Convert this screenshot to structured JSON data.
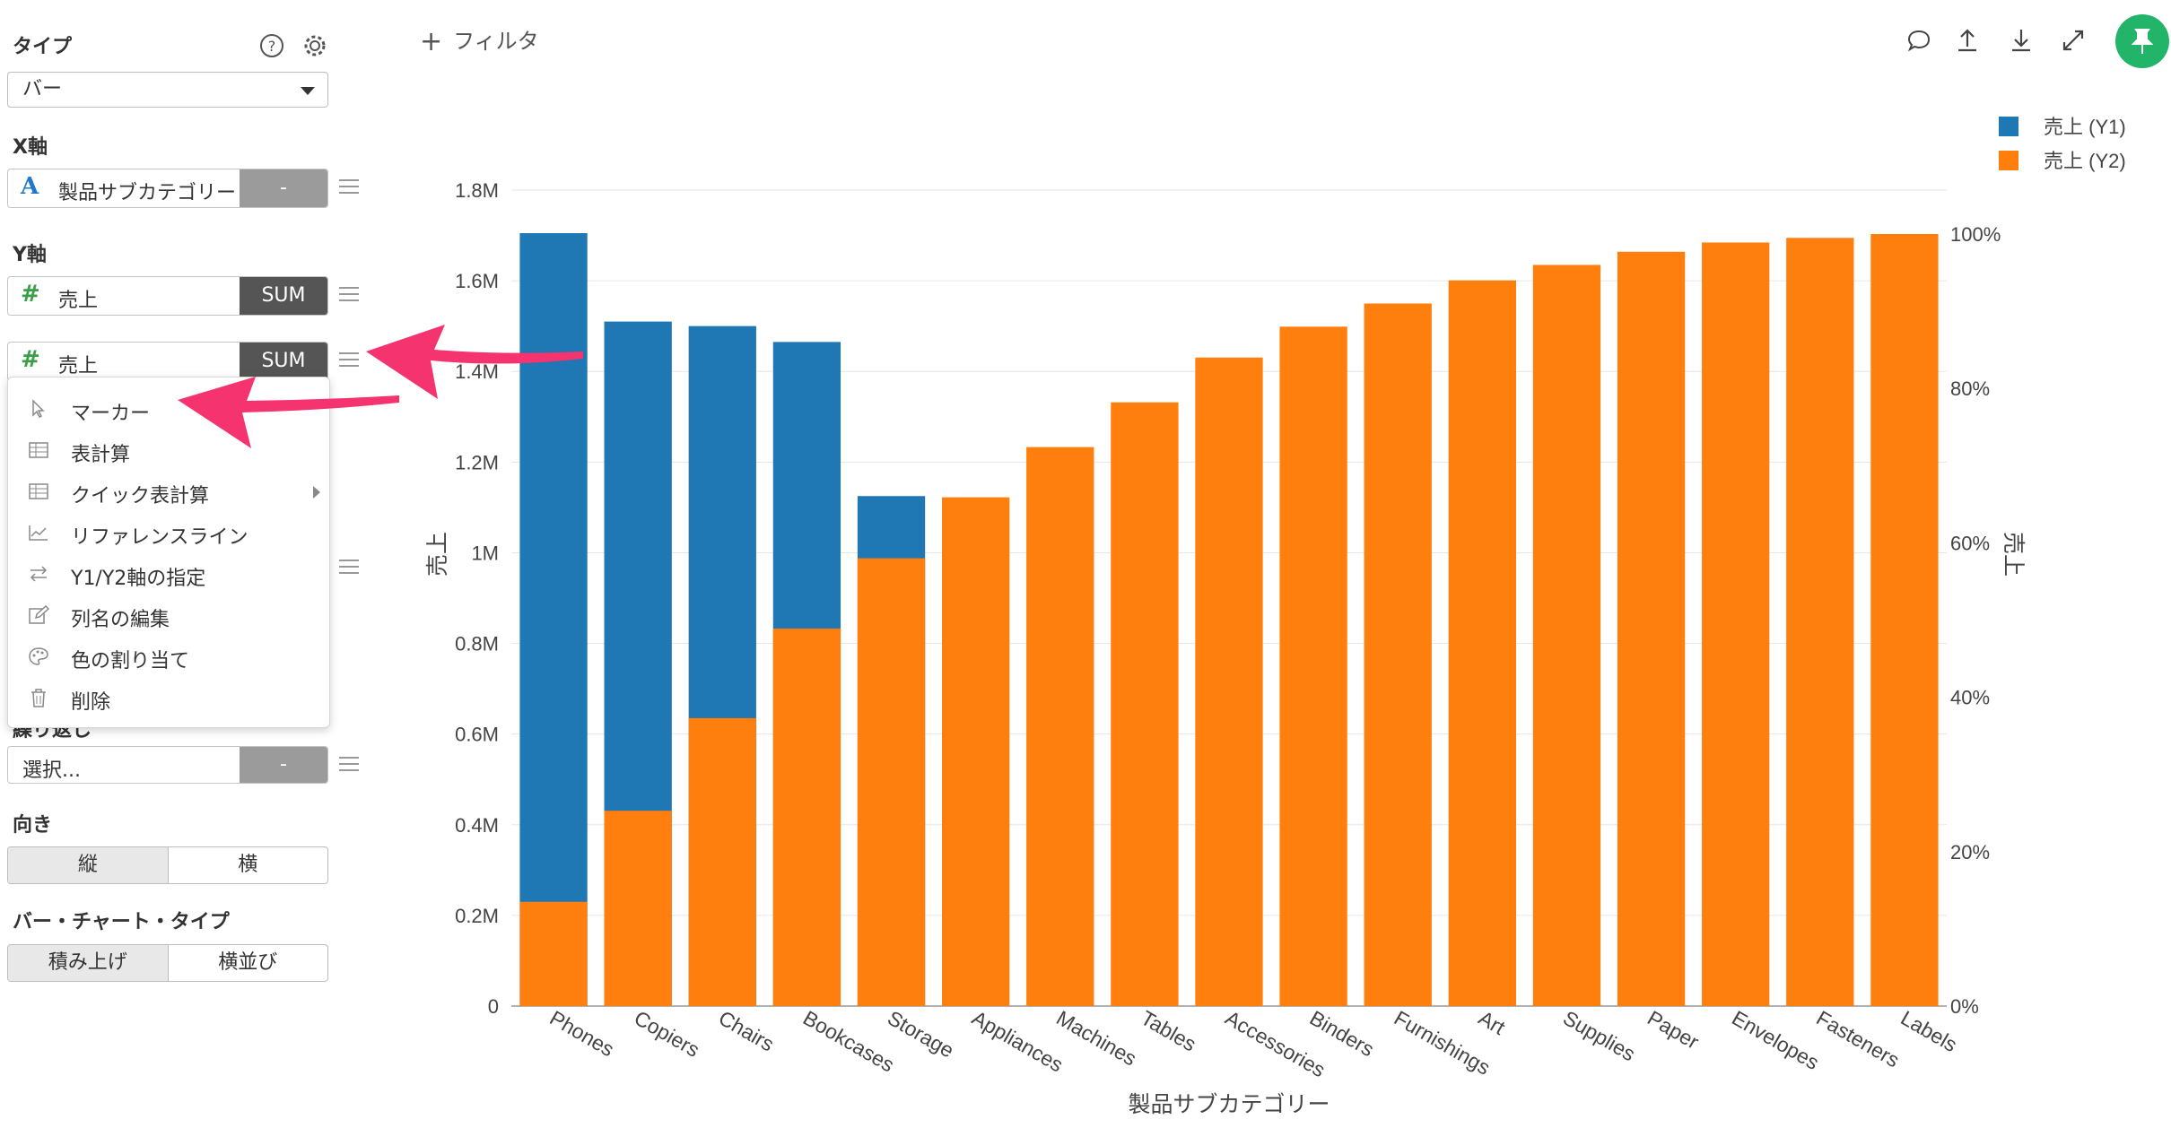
{
  "panel": {
    "type_label": "タイプ",
    "type_value": "バー",
    "xaxis_label": "X軸",
    "xaxis_field": {
      "name": "製品サブカテゴリー",
      "agg": "-"
    },
    "yaxis_label": "Y軸",
    "yaxis_field1": {
      "name": "売上",
      "agg": "SUM"
    },
    "yaxis_field2": {
      "name": "売上",
      "agg": "SUM"
    },
    "repeat_label": "繰り返し",
    "repeat_field": {
      "placeholder": "選択...",
      "agg": "-"
    },
    "orientation_label": "向き",
    "orientation_options": [
      "縦",
      "横"
    ],
    "bar_type_label": "バー・チャート・タイプ",
    "bar_type_options": [
      "積み上げ",
      "横並び"
    ]
  },
  "menu": {
    "items": [
      {
        "label": "マーカー",
        "icon": "cursor-icon"
      },
      {
        "label": "表計算",
        "icon": "table-icon"
      },
      {
        "label": "クイック表計算",
        "icon": "table-icon",
        "submenu": true
      },
      {
        "label": "リファレンスライン",
        "icon": "line-chart-icon"
      },
      {
        "label": "Y1/Y2軸の指定",
        "icon": "swap-icon"
      },
      {
        "label": "列名の編集",
        "icon": "edit-icon"
      },
      {
        "label": "色の割り当て",
        "icon": "palette-icon"
      },
      {
        "label": "削除",
        "icon": "trash-icon"
      }
    ]
  },
  "toolbar": {
    "filter_label": "フィルタ",
    "icons": [
      "comment-icon",
      "upload-icon",
      "download-icon",
      "expand-icon",
      "pin-icon"
    ]
  },
  "colors": {
    "y1": "#1f77b4",
    "y2": "#ff7f0e",
    "pin": "#22b56a",
    "arrow": "#f5336f"
  },
  "chart_data": {
    "type": "bar",
    "categories": [
      "Phones",
      "Copiers",
      "Chairs",
      "Bookcases",
      "Storage",
      "Appliances",
      "Machines",
      "Tables",
      "Accessories",
      "Binders",
      "Furnishings",
      "Art",
      "Supplies",
      "Paper",
      "Envelopes",
      "Fasteners",
      "Labels"
    ],
    "series": [
      {
        "name": "売上 (Y1)",
        "axis": "y1",
        "values": [
          1705000,
          1510000,
          1500000,
          1465000,
          1125000,
          0,
          0,
          0,
          0,
          0,
          0,
          0,
          0,
          0,
          0,
          0,
          0
        ]
      },
      {
        "name": "売上 (Y2)",
        "axis": "y2",
        "values": [
          13.5,
          25.3,
          37.3,
          48.9,
          58.0,
          65.9,
          72.4,
          78.2,
          84.0,
          88.0,
          91.0,
          94.0,
          96.0,
          97.7,
          98.9,
          99.5,
          100
        ]
      }
    ],
    "xlabel": "製品サブカテゴリー",
    "ylabel": "売上",
    "y2label": "売上",
    "ylim": [
      0,
      1800000
    ],
    "y2lim": [
      0,
      100
    ],
    "yticks": [
      "0",
      "0.2M",
      "0.4M",
      "0.6M",
      "0.8M",
      "1M",
      "1.2M",
      "1.4M",
      "1.6M",
      "1.8M"
    ],
    "y2ticks": [
      "0%",
      "20%",
      "40%",
      "60%",
      "80%",
      "100%"
    ],
    "legend": [
      "売上 (Y1)",
      "売上 (Y2)"
    ],
    "legend_position": "top-right",
    "grid": true
  }
}
